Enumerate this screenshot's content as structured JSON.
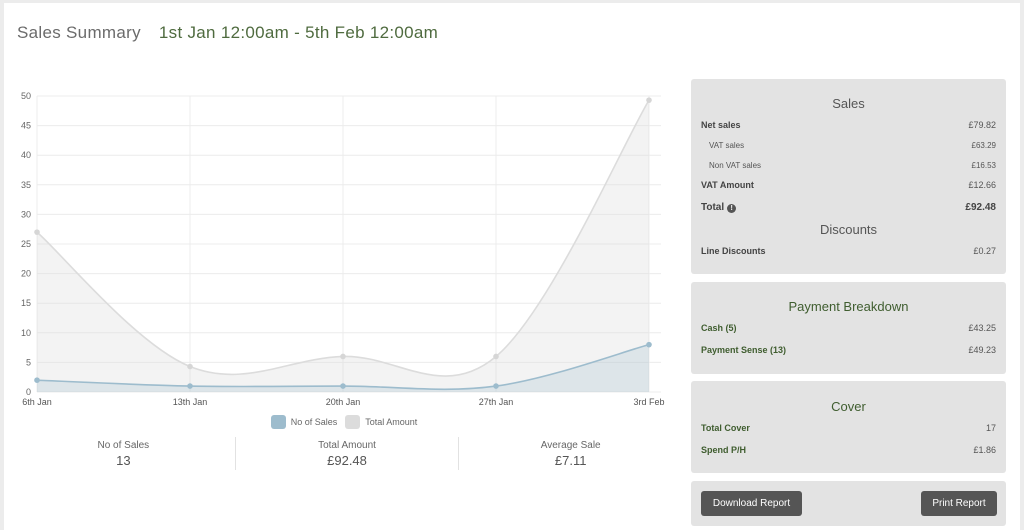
{
  "header": {
    "title": "Sales Summary",
    "date_range": "1st Jan 12:00am - 5th Feb 12:00am"
  },
  "chart_data": {
    "type": "area",
    "x": [
      "6th Jan",
      "13th Jan",
      "20th Jan",
      "27th Jan",
      "3rd Feb"
    ],
    "series": [
      {
        "name": "No of Sales",
        "values": [
          2,
          1,
          1,
          1,
          8
        ],
        "color": "#9dbccd"
      },
      {
        "name": "Total Amount",
        "values": [
          27,
          4.3,
          6,
          6,
          49.3
        ],
        "color": "#dcdcdc"
      }
    ],
    "yticks": [
      0,
      5,
      10,
      15,
      20,
      25,
      30,
      35,
      40,
      45,
      50
    ],
    "ylim": [
      0,
      50
    ],
    "grid": true,
    "legend": "bottom"
  },
  "stats": [
    {
      "label": "No of Sales",
      "value": "13"
    },
    {
      "label": "Total Amount",
      "value": "£92.48"
    },
    {
      "label": "Average Sale",
      "value": "£7.11"
    }
  ],
  "sales_panel": {
    "title": "Sales",
    "net_sales": {
      "label": "Net sales",
      "value": "£79.82"
    },
    "vat_sales": {
      "label": "VAT sales",
      "value": "£63.29"
    },
    "non_vat_sales": {
      "label": "Non VAT sales",
      "value": "£16.53"
    },
    "vat_amount": {
      "label": "VAT Amount",
      "value": "£12.66"
    },
    "total": {
      "label": "Total",
      "value": "£92.48",
      "icon": "info-icon"
    },
    "discounts_title": "Discounts",
    "line_discounts": {
      "label": "Line Discounts",
      "value": "£0.27"
    }
  },
  "payment_panel": {
    "title": "Payment Breakdown",
    "cash": {
      "label": "Cash (5)",
      "value": "£43.25"
    },
    "payment_sense": {
      "label": "Payment Sense (13)",
      "value": "£49.23"
    }
  },
  "cover_panel": {
    "title": "Cover",
    "total_cover": {
      "label": "Total Cover",
      "value": "17"
    },
    "spend_ph": {
      "label": "Spend P/H",
      "value": "£1.86"
    }
  },
  "actions": {
    "download_label": "Download Report",
    "print_label": "Print Report"
  }
}
